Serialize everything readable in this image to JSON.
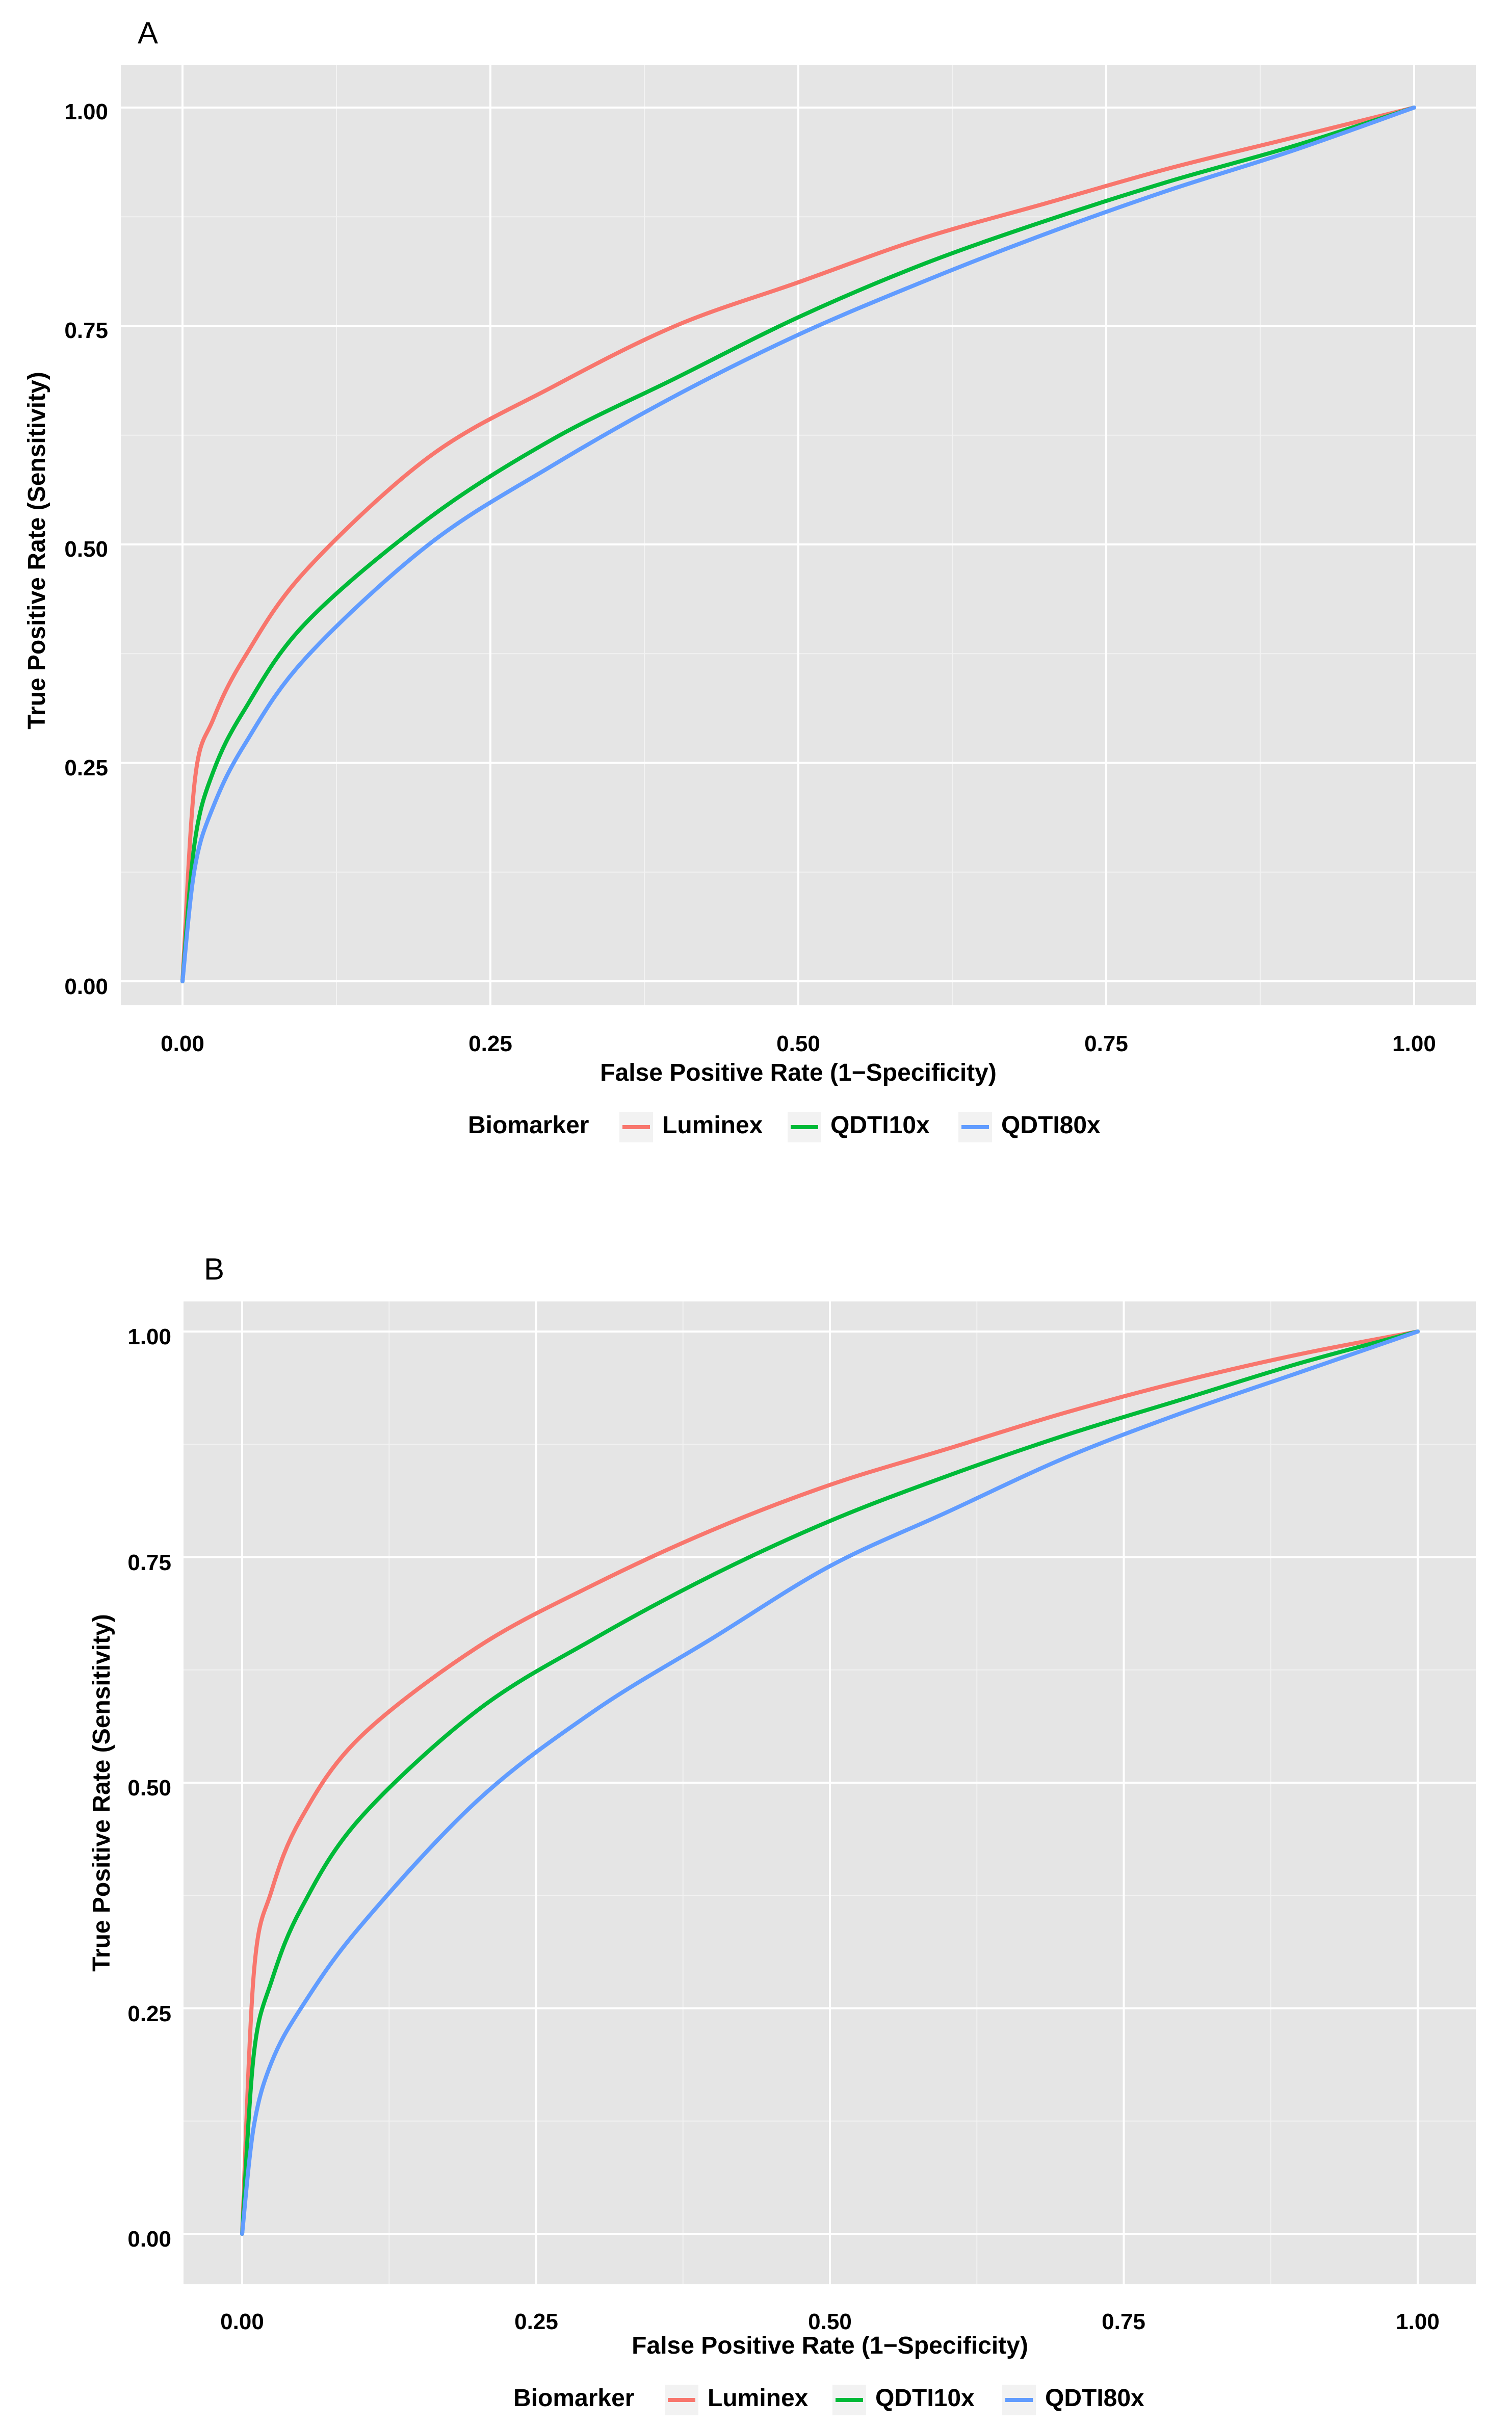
{
  "chart_data": [
    {
      "panel": "A",
      "type": "line",
      "title": "",
      "xlabel": "False Positive Rate (1−Specificity)",
      "ylabel": "True Positive Rate (Sensitivity)",
      "xlim": [
        0,
        1
      ],
      "ylim": [
        0,
        1
      ],
      "x_ticks": [
        "0.00",
        "0.25",
        "0.50",
        "0.75",
        "1.00"
      ],
      "y_ticks": [
        "0.00",
        "0.25",
        "0.50",
        "0.75",
        "1.00"
      ],
      "grid": true,
      "legend_title": "Biomarker",
      "legend_position": "bottom",
      "series": [
        {
          "name": "Luminex",
          "color": "#F8766D",
          "x": [
            0,
            0.01,
            0.025,
            0.05,
            0.1,
            0.2,
            0.3,
            0.4,
            0.5,
            0.6,
            0.7,
            0.8,
            0.9,
            1.0
          ],
          "y": [
            0,
            0.23,
            0.3,
            0.37,
            0.47,
            0.6,
            0.68,
            0.75,
            0.8,
            0.85,
            0.89,
            0.93,
            0.965,
            1.0
          ]
        },
        {
          "name": "QDTI10x",
          "color": "#00BA38",
          "x": [
            0,
            0.01,
            0.025,
            0.05,
            0.1,
            0.2,
            0.3,
            0.4,
            0.5,
            0.6,
            0.7,
            0.8,
            0.9,
            1.0
          ],
          "y": [
            0,
            0.16,
            0.24,
            0.31,
            0.41,
            0.53,
            0.62,
            0.69,
            0.76,
            0.82,
            0.87,
            0.915,
            0.955,
            1.0
          ]
        },
        {
          "name": "QDTI80x",
          "color": "#619CFF",
          "x": [
            0,
            0.01,
            0.025,
            0.05,
            0.1,
            0.2,
            0.3,
            0.4,
            0.5,
            0.6,
            0.7,
            0.8,
            0.9,
            1.0
          ],
          "y": [
            0,
            0.13,
            0.2,
            0.27,
            0.37,
            0.5,
            0.59,
            0.67,
            0.74,
            0.8,
            0.855,
            0.905,
            0.95,
            1.0
          ]
        }
      ]
    },
    {
      "panel": "B",
      "type": "line",
      "title": "",
      "xlabel": "False Positive Rate (1−Specificity)",
      "ylabel": "True Positive Rate (Sensitivity)",
      "xlim": [
        0,
        1
      ],
      "ylim": [
        0,
        1
      ],
      "x_ticks": [
        "0.00",
        "0.25",
        "0.50",
        "0.75",
        "1.00"
      ],
      "y_ticks": [
        "0.00",
        "0.25",
        "0.50",
        "0.75",
        "1.00"
      ],
      "grid": true,
      "legend_title": "Biomarker",
      "legend_position": "bottom",
      "series": [
        {
          "name": "Luminex",
          "color": "#F8766D",
          "x": [
            0,
            0.01,
            0.025,
            0.05,
            0.1,
            0.2,
            0.3,
            0.4,
            0.5,
            0.6,
            0.7,
            0.8,
            0.9,
            1.0
          ],
          "y": [
            0,
            0.29,
            0.38,
            0.46,
            0.55,
            0.65,
            0.72,
            0.78,
            0.83,
            0.87,
            0.91,
            0.945,
            0.975,
            1.0
          ]
        },
        {
          "name": "QDTI10x",
          "color": "#00BA38",
          "x": [
            0,
            0.01,
            0.025,
            0.05,
            0.1,
            0.2,
            0.3,
            0.4,
            0.5,
            0.6,
            0.7,
            0.8,
            0.9,
            1.0
          ],
          "y": [
            0,
            0.2,
            0.28,
            0.36,
            0.46,
            0.58,
            0.66,
            0.73,
            0.79,
            0.84,
            0.885,
            0.925,
            0.965,
            1.0
          ]
        },
        {
          "name": "QDTI80x",
          "color": "#619CFF",
          "x": [
            0,
            0.01,
            0.025,
            0.05,
            0.1,
            0.2,
            0.3,
            0.4,
            0.5,
            0.6,
            0.7,
            0.8,
            0.9,
            1.0
          ],
          "y": [
            0,
            0.12,
            0.19,
            0.25,
            0.34,
            0.48,
            0.58,
            0.66,
            0.74,
            0.8,
            0.86,
            0.91,
            0.955,
            1.0
          ]
        }
      ]
    }
  ]
}
